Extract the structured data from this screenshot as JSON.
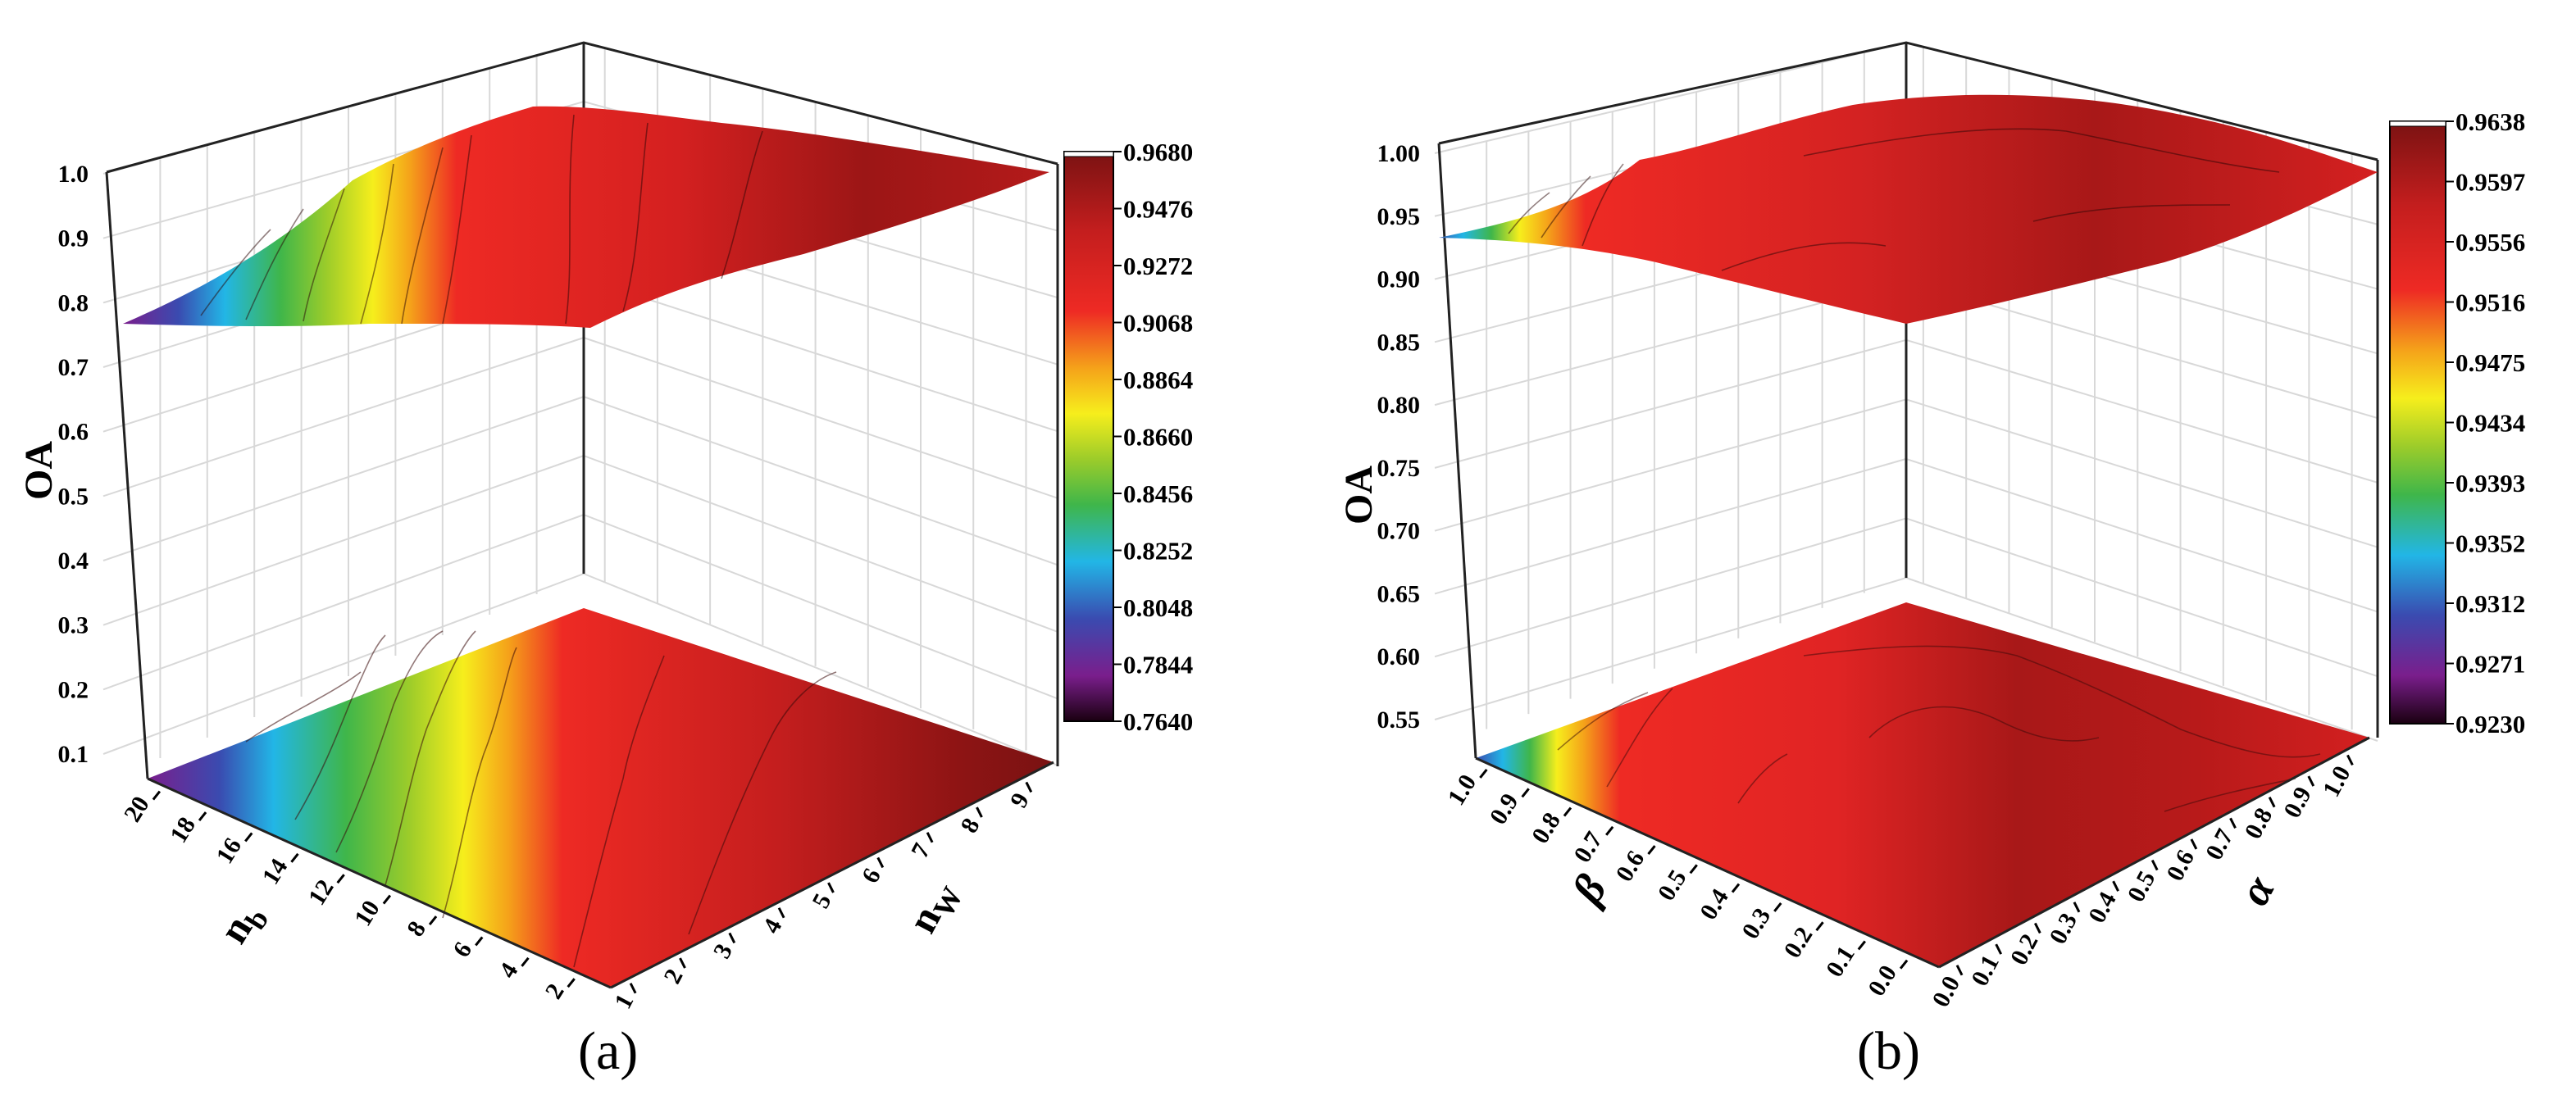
{
  "chart_data": [
    {
      "type": "surface3d",
      "caption": "(a)",
      "zlabel": "OA",
      "xlabel": "n_b",
      "ylabel": "n_W",
      "xlabel_display": "n",
      "xlabel_sub": "b",
      "ylabel_display": "n",
      "ylabel_sub": "W",
      "z_ticks": [
        "0.1",
        "0.2",
        "0.3",
        "0.4",
        "0.5",
        "0.6",
        "0.7",
        "0.8",
        "0.9",
        "1.0"
      ],
      "x_ticks": [
        "20",
        "18",
        "16",
        "14",
        "12",
        "10",
        "8",
        "6",
        "4",
        "2"
      ],
      "y_ticks": [
        "1",
        "2",
        "3",
        "4",
        "5",
        "6",
        "7",
        "8",
        "9"
      ],
      "xlim": [
        2,
        20
      ],
      "ylim": [
        1,
        9
      ],
      "zlim": [
        0.1,
        1.0
      ],
      "colorbar_ticks": [
        "0.9680",
        "0.9476",
        "0.9272",
        "0.9068",
        "0.8864",
        "0.8660",
        "0.8456",
        "0.8252",
        "0.8048",
        "0.7844",
        "0.7640"
      ],
      "colorbar_range": [
        0.764,
        0.968
      ],
      "surface_trend": "OA rises from about 0.77 at large n_b and small n_W to about 0.968 at small n_b and large n_W"
    },
    {
      "type": "surface3d",
      "caption": "(b)",
      "zlabel": "OA",
      "xlabel": "β",
      "ylabel": "α",
      "z_ticks": [
        "0.55",
        "0.60",
        "0.65",
        "0.70",
        "0.75",
        "0.80",
        "0.85",
        "0.90",
        "0.95",
        "1.00"
      ],
      "x_ticks": [
        "1.0",
        "0.9",
        "0.8",
        "0.7",
        "0.6",
        "0.5",
        "0.4",
        "0.3",
        "0.2",
        "0.1",
        "0.0"
      ],
      "y_ticks": [
        "0.0",
        "0.1",
        "0.2",
        "0.3",
        "0.4",
        "0.5",
        "0.6",
        "0.7",
        "0.8",
        "0.9",
        "1.0"
      ],
      "xlim": [
        0.0,
        1.0
      ],
      "ylim": [
        0.0,
        1.0
      ],
      "zlim": [
        0.55,
        1.0
      ],
      "colorbar_ticks": [
        "0.9638",
        "0.9597",
        "0.9556",
        "0.9516",
        "0.9475",
        "0.9434",
        "0.9393",
        "0.9352",
        "0.9312",
        "0.9271",
        "0.9230"
      ],
      "colorbar_range": [
        0.923,
        0.9638
      ],
      "surface_trend": "OA mostly 0.95–0.964, dipping to about 0.923 where β≈1.0 and α≈0.0"
    }
  ],
  "colormap": [
    "#1a0010",
    "#7a1e8c",
    "#3a4bb0",
    "#22b6e6",
    "#3fb64a",
    "#9ccc2a",
    "#f6ee1c",
    "#f5a21a",
    "#ee2a24",
    "#c41e1e",
    "#7a1212"
  ]
}
